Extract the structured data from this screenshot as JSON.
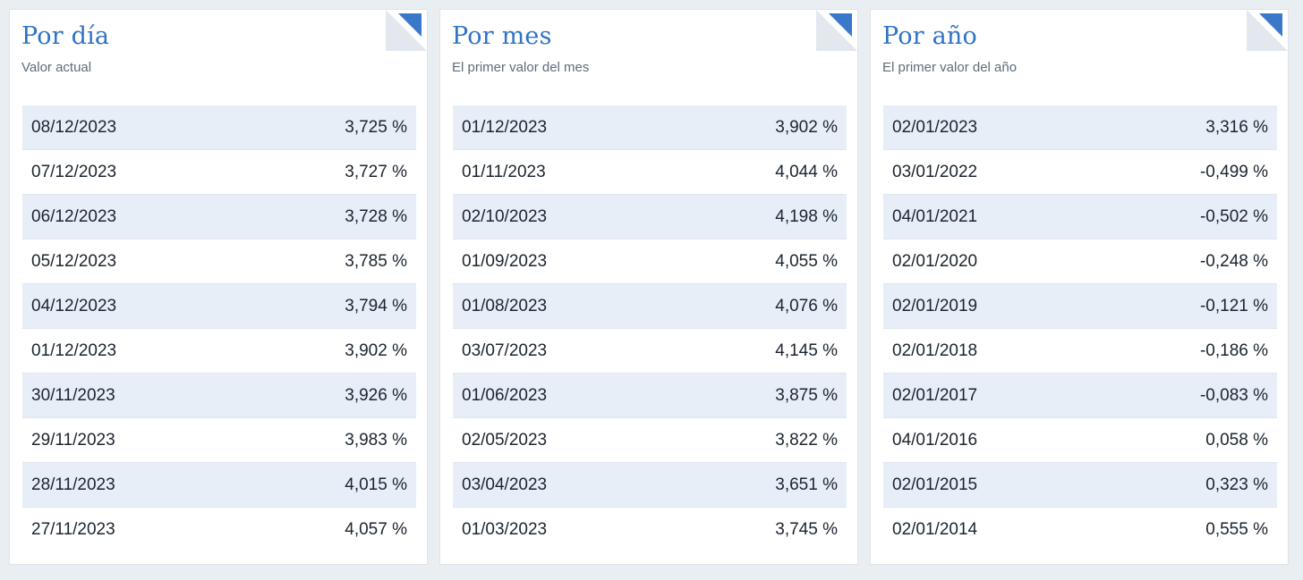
{
  "colors": {
    "accent": "#2f73c5",
    "row_stripe": "#e7eef7",
    "background": "#e9eef3"
  },
  "cards": [
    {
      "title": "Por día",
      "subtitle": "Valor actual",
      "rows": [
        {
          "date": "08/12/2023",
          "value": "3,725 %"
        },
        {
          "date": "07/12/2023",
          "value": "3,727 %"
        },
        {
          "date": "06/12/2023",
          "value": "3,728 %"
        },
        {
          "date": "05/12/2023",
          "value": "3,785 %"
        },
        {
          "date": "04/12/2023",
          "value": "3,794 %"
        },
        {
          "date": "01/12/2023",
          "value": "3,902 %"
        },
        {
          "date": "30/11/2023",
          "value": "3,926 %"
        },
        {
          "date": "29/11/2023",
          "value": "3,983 %"
        },
        {
          "date": "28/11/2023",
          "value": "4,015 %"
        },
        {
          "date": "27/11/2023",
          "value": "4,057 %"
        }
      ]
    },
    {
      "title": "Por mes",
      "subtitle": "El primer valor del mes",
      "rows": [
        {
          "date": "01/12/2023",
          "value": "3,902 %"
        },
        {
          "date": "01/11/2023",
          "value": "4,044 %"
        },
        {
          "date": "02/10/2023",
          "value": "4,198 %"
        },
        {
          "date": "01/09/2023",
          "value": "4,055 %"
        },
        {
          "date": "01/08/2023",
          "value": "4,076 %"
        },
        {
          "date": "03/07/2023",
          "value": "4,145 %"
        },
        {
          "date": "01/06/2023",
          "value": "3,875 %"
        },
        {
          "date": "02/05/2023",
          "value": "3,822 %"
        },
        {
          "date": "03/04/2023",
          "value": "3,651 %"
        },
        {
          "date": "01/03/2023",
          "value": "3,745 %"
        }
      ]
    },
    {
      "title": "Por año",
      "subtitle": "El primer valor del año",
      "rows": [
        {
          "date": "02/01/2023",
          "value": "3,316 %"
        },
        {
          "date": "03/01/2022",
          "value": "-0,499 %"
        },
        {
          "date": "04/01/2021",
          "value": "-0,502 %"
        },
        {
          "date": "02/01/2020",
          "value": "-0,248 %"
        },
        {
          "date": "02/01/2019",
          "value": "-0,121 %"
        },
        {
          "date": "02/01/2018",
          "value": "-0,186 %"
        },
        {
          "date": "02/01/2017",
          "value": "-0,083 %"
        },
        {
          "date": "04/01/2016",
          "value": "0,058 %"
        },
        {
          "date": "02/01/2015",
          "value": "0,323 %"
        },
        {
          "date": "02/01/2014",
          "value": "0,555 %"
        }
      ]
    }
  ]
}
